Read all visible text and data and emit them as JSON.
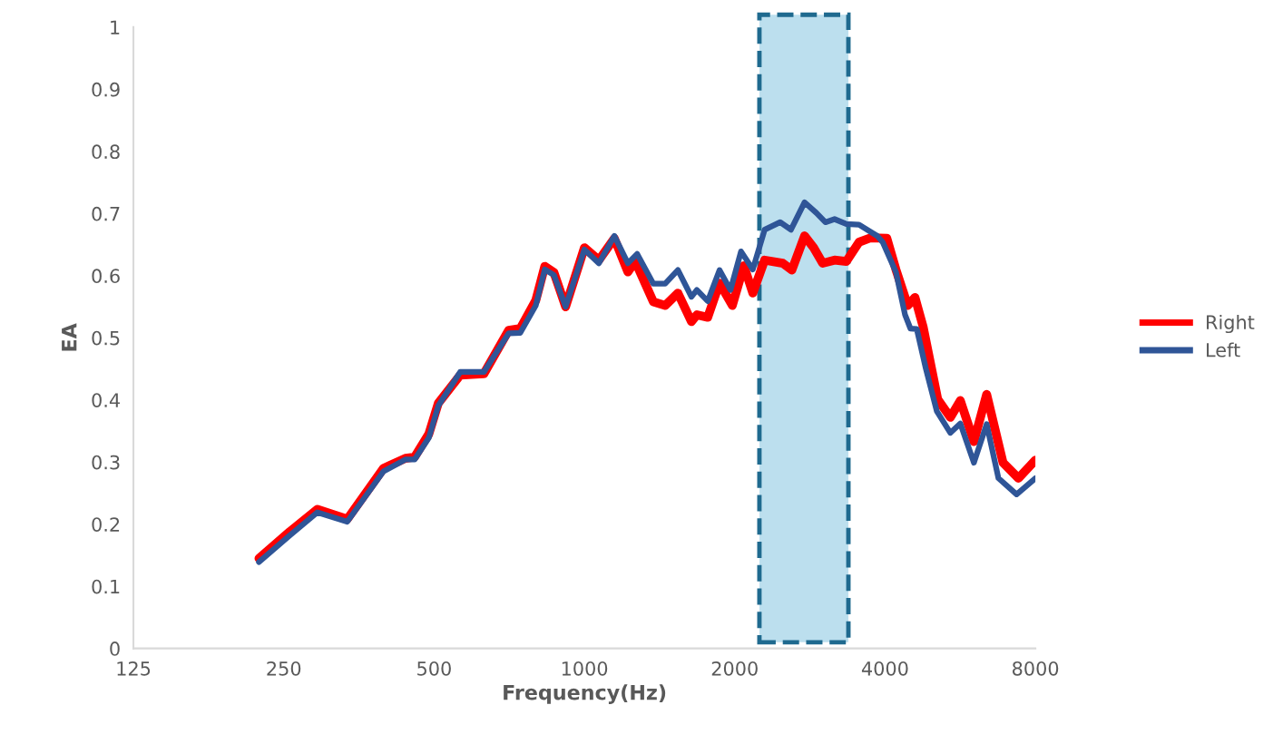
{
  "chart_data": {
    "type": "line",
    "xlabel": "Frequency(Hz)",
    "ylabel": "EA",
    "log": "x",
    "xlim": [
      125,
      8000
    ],
    "xticks": [
      125,
      250,
      500,
      1000,
      2000,
      4000,
      8000
    ],
    "ylim": [
      0,
      1
    ],
    "yticks": [
      0,
      0.1,
      0.2,
      0.3,
      0.4,
      0.5,
      0.6,
      0.7,
      0.8,
      0.9,
      1
    ],
    "grid": false,
    "legend": "right",
    "marker": "none",
    "line_style": "solid",
    "bands": [
      {
        "axis": "x",
        "from": 2241,
        "to": 3378,
        "color": "#bcdfee"
      }
    ],
    "series": [
      {
        "name": "Right",
        "color": "#ff0000",
        "x": [
          223,
          257,
          292,
          335,
          396,
          438,
          457,
          488,
          510,
          564,
          629,
          705,
          744,
          799,
          833,
          869,
          917,
          1000,
          1069,
          1148,
          1222,
          1264,
          1374,
          1451,
          1539,
          1638,
          1680,
          1766,
          1865,
          1978,
          2086,
          2174,
          2296,
          2496,
          2603,
          2760,
          2878,
          3000,
          3169,
          3346,
          3548,
          3746,
          4033,
          4205,
          4441,
          4592,
          4767,
          5099,
          5406,
          5660,
          6025,
          6391,
          6891,
          7397,
          8000
        ],
        "values": [
          0.145,
          0.188,
          0.224,
          0.208,
          0.29,
          0.306,
          0.308,
          0.345,
          0.395,
          0.44,
          0.442,
          0.512,
          0.515,
          0.56,
          0.615,
          0.605,
          0.55,
          0.645,
          0.625,
          0.66,
          0.606,
          0.623,
          0.558,
          0.552,
          0.572,
          0.526,
          0.537,
          0.533,
          0.588,
          0.552,
          0.616,
          0.572,
          0.625,
          0.62,
          0.609,
          0.664,
          0.645,
          0.62,
          0.625,
          0.623,
          0.654,
          0.661,
          0.66,
          0.61,
          0.552,
          0.565,
          0.518,
          0.401,
          0.372,
          0.399,
          0.333,
          0.409,
          0.299,
          0.274,
          0.303
        ]
      },
      {
        "name": "Left",
        "color": "#2f5597",
        "x": [
          223,
          257,
          292,
          335,
          396,
          438,
          457,
          488,
          510,
          564,
          629,
          705,
          744,
          799,
          833,
          869,
          917,
          1000,
          1069,
          1148,
          1222,
          1275,
          1374,
          1451,
          1539,
          1638,
          1680,
          1766,
          1865,
          1961,
          2059,
          2174,
          2296,
          2466,
          2592,
          2760,
          2914,
          3038,
          3169,
          3346,
          3548,
          3858,
          3956,
          4205,
          4386,
          4496,
          4631,
          4829,
          5077,
          5406,
          5660,
          6025,
          6391,
          6747,
          7336,
          8000
        ],
        "values": [
          0.139,
          0.182,
          0.219,
          0.204,
          0.285,
          0.304,
          0.304,
          0.339,
          0.391,
          0.445,
          0.445,
          0.507,
          0.508,
          0.552,
          0.61,
          0.601,
          0.55,
          0.642,
          0.62,
          0.664,
          0.62,
          0.635,
          0.587,
          0.587,
          0.609,
          0.566,
          0.577,
          0.559,
          0.609,
          0.577,
          0.639,
          0.61,
          0.674,
          0.686,
          0.674,
          0.718,
          0.701,
          0.686,
          0.691,
          0.683,
          0.682,
          0.664,
          0.654,
          0.606,
          0.537,
          0.515,
          0.514,
          0.45,
          0.382,
          0.347,
          0.362,
          0.299,
          0.361,
          0.274,
          0.248,
          0.274
        ]
      }
    ]
  }
}
